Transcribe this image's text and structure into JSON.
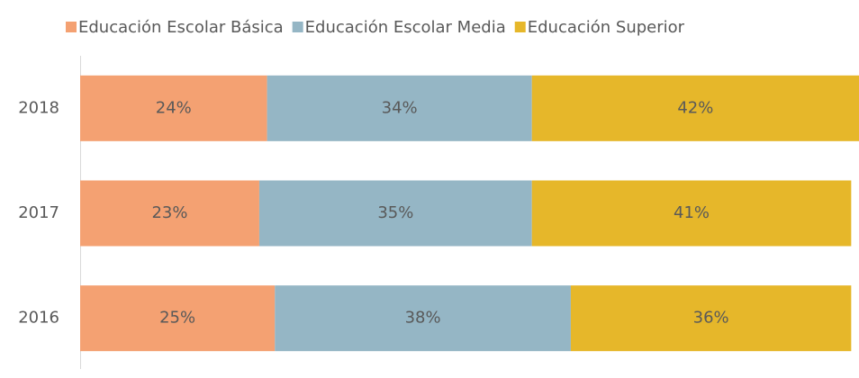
{
  "chart_data": {
    "type": "stacked-barh",
    "categories": [
      "2018",
      "2017",
      "2016"
    ],
    "series": [
      {
        "name": "Educación Escolar Básica",
        "color": "#F4A172",
        "values": [
          24,
          23,
          25
        ],
        "value_labels": [
          "24%",
          "23%",
          "25%"
        ]
      },
      {
        "name": "Educación Escolar Media",
        "color": "#95B6C5",
        "values": [
          34,
          35,
          38
        ],
        "value_labels": [
          "34%",
          "35%",
          "38%"
        ]
      },
      {
        "name": "Educación Superior",
        "color": "#E6B72A",
        "values": [
          42,
          41,
          36
        ],
        "value_labels": [
          "42%",
          "41%",
          "36%"
        ]
      }
    ],
    "xlim": [
      0,
      100
    ],
    "legend": "top"
  }
}
